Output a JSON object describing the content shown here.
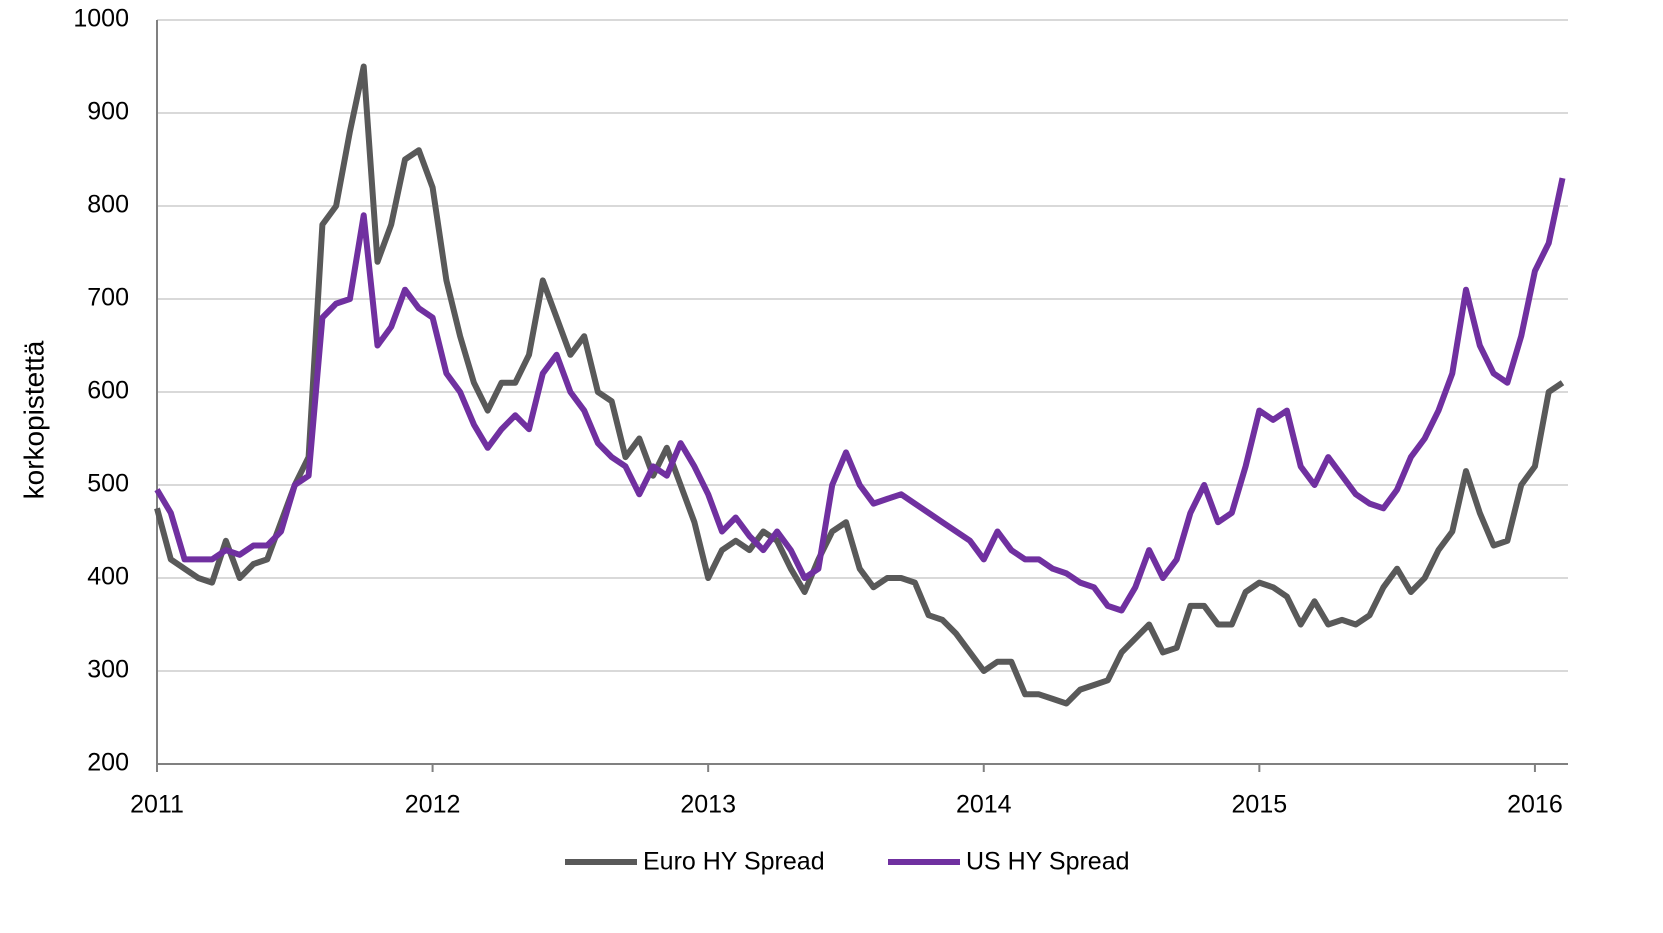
{
  "chart_data": {
    "type": "line",
    "ylabel": "korkopistettä",
    "x": [
      2011,
      2011.05,
      2011.1,
      2011.15,
      2011.2,
      2011.25,
      2011.3,
      2011.35,
      2011.4,
      2011.45,
      2011.5,
      2011.55,
      2011.6,
      2011.65,
      2011.7,
      2011.75,
      2011.8,
      2011.85,
      2011.9,
      2011.95,
      2012,
      2012.05,
      2012.1,
      2012.15,
      2012.2,
      2012.25,
      2012.3,
      2012.35,
      2012.4,
      2012.45,
      2012.5,
      2012.55,
      2012.6,
      2012.65,
      2012.7,
      2012.75,
      2012.8,
      2012.85,
      2012.9,
      2012.95,
      2013,
      2013.05,
      2013.1,
      2013.15,
      2013.2,
      2013.25,
      2013.3,
      2013.35,
      2013.4,
      2013.45,
      2013.5,
      2013.55,
      2013.6,
      2013.65,
      2013.7,
      2013.75,
      2013.8,
      2013.85,
      2013.9,
      2013.95,
      2014,
      2014.05,
      2014.1,
      2014.15,
      2014.2,
      2014.25,
      2014.3,
      2014.35,
      2014.4,
      2014.45,
      2014.5,
      2014.55,
      2014.6,
      2014.65,
      2014.7,
      2014.75,
      2014.8,
      2014.85,
      2014.9,
      2014.95,
      2015,
      2015.05,
      2015.1,
      2015.15,
      2015.2,
      2015.25,
      2015.3,
      2015.35,
      2015.4,
      2015.45,
      2015.5,
      2015.55,
      2015.6,
      2015.65,
      2015.7,
      2015.75,
      2015.8,
      2015.85,
      2015.9,
      2015.95,
      2016,
      2016.05,
      2016.1
    ],
    "series": [
      {
        "name": "Euro HY Spread",
        "color": "#595959",
        "values": [
          475,
          420,
          410,
          400,
          395,
          440,
          400,
          415,
          420,
          460,
          500,
          530,
          780,
          800,
          880,
          950,
          740,
          780,
          850,
          860,
          820,
          720,
          660,
          610,
          580,
          610,
          610,
          640,
          720,
          680,
          640,
          660,
          600,
          590,
          530,
          550,
          510,
          540,
          500,
          460,
          400,
          430,
          440,
          430,
          450,
          440,
          410,
          385,
          420,
          450,
          460,
          410,
          390,
          400,
          400,
          395,
          360,
          355,
          340,
          320,
          300,
          310,
          310,
          275,
          275,
          270,
          265,
          280,
          285,
          290,
          320,
          335,
          350,
          320,
          325,
          370,
          370,
          350,
          350,
          385,
          395,
          390,
          380,
          350,
          375,
          350,
          355,
          350,
          360,
          390,
          410,
          385,
          400,
          430,
          450,
          515,
          470,
          435,
          440,
          500,
          520,
          600,
          610
        ]
      },
      {
        "name": "US HY Spread",
        "color": "#7030a0",
        "values": [
          495,
          470,
          420,
          420,
          420,
          430,
          425,
          435,
          435,
          450,
          500,
          510,
          680,
          695,
          700,
          790,
          650,
          670,
          710,
          690,
          680,
          620,
          600,
          565,
          540,
          560,
          575,
          560,
          620,
          640,
          600,
          580,
          545,
          530,
          520,
          490,
          520,
          510,
          545,
          520,
          490,
          450,
          465,
          445,
          430,
          450,
          430,
          400,
          410,
          500,
          535,
          500,
          480,
          485,
          490,
          480,
          470,
          460,
          450,
          440,
          420,
          450,
          430,
          420,
          420,
          410,
          405,
          395,
          390,
          370,
          365,
          390,
          430,
          400,
          420,
          470,
          500,
          460,
          470,
          520,
          580,
          570,
          580,
          520,
          500,
          530,
          510,
          490,
          480,
          475,
          495,
          530,
          550,
          580,
          620,
          710,
          650,
          620,
          610,
          660,
          730,
          760,
          830
        ]
      }
    ],
    "xlim": [
      2011,
      2016.12
    ],
    "xticks": [
      2011,
      2012,
      2013,
      2014,
      2015,
      2016
    ],
    "ylim": [
      200,
      1000
    ],
    "yticks": [
      200,
      300,
      400,
      500,
      600,
      700,
      800,
      900,
      1000
    ],
    "grid": true,
    "legend": "bottom"
  }
}
